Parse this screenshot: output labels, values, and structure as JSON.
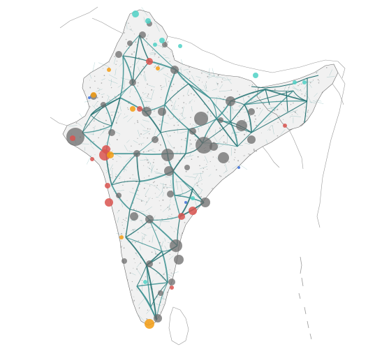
{
  "map": {
    "style": "network-map-of-india",
    "colors": {
      "background": "#ffffff",
      "land_fill": "#f1f1f1",
      "coastline": "#6e6e6e",
      "neighbor_border": "#9a9a9a",
      "network_line": "#1f6e6e",
      "network_line_light": "#3a8f8f",
      "minor_points": "#7a7a7a",
      "node_gray": "#6b6b6b",
      "node_red": "#d9534f",
      "node_orange": "#f39c12",
      "node_cyan": "#4fd1c5",
      "node_blue": "#3b6fd8"
    },
    "legend": null,
    "title": null
  }
}
